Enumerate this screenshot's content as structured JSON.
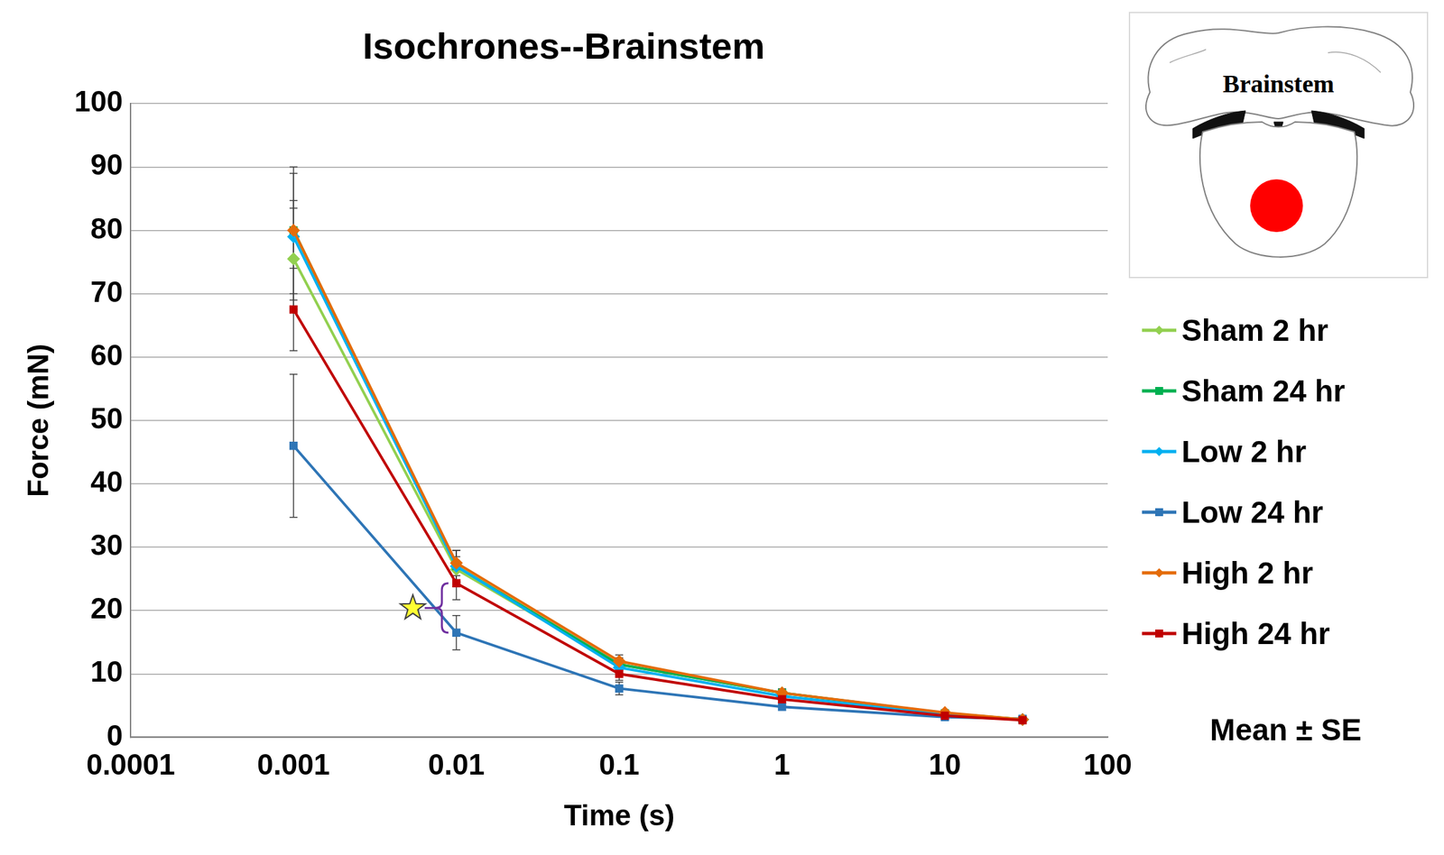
{
  "chart_data": {
    "type": "line",
    "title": "Isochrones--Brainstem",
    "x_label": "Time (s)",
    "y_label": "Force (mN)",
    "x": [
      0.001,
      0.01,
      0.1,
      1,
      10,
      30
    ],
    "series": [
      {
        "name": "Sham 2 hr",
        "color": "#92d050",
        "marker": "diamond",
        "values": [
          75.5,
          26.5,
          11.5,
          7,
          3.8,
          2.8
        ],
        "errors": [
          8,
          2,
          1,
          0.6,
          0.3,
          0.2
        ]
      },
      {
        "name": "Sham 24 hr",
        "color": "#00b050",
        "marker": "square",
        "values": [
          80,
          27,
          11.5,
          7,
          3.8,
          2.8
        ],
        "errors": [
          4.7,
          2.5,
          1,
          0.6,
          0.3,
          0.2
        ]
      },
      {
        "name": "Low 2 hr",
        "color": "#00b0f0",
        "marker": "diamond",
        "values": [
          79,
          27,
          11,
          6.5,
          3.6,
          2.8
        ],
        "errors": [
          10,
          2.5,
          1,
          0.6,
          0.3,
          0.2
        ]
      },
      {
        "name": "Low 24 hr",
        "color": "#2e75b6",
        "marker": "square",
        "values": [
          46,
          16.5,
          7.7,
          4.8,
          3.2,
          2.9
        ],
        "errors": [
          11.3,
          2.7,
          1,
          0.5,
          0.3,
          0.2
        ]
      },
      {
        "name": "High 2 hr",
        "color": "#e46c0a",
        "marker": "diamond",
        "values": [
          80,
          27.5,
          12,
          7,
          3.9,
          2.8
        ],
        "errors": [
          10,
          2,
          1,
          0.6,
          0.3,
          0.2
        ]
      },
      {
        "name": "High 24 hr",
        "color": "#c00000",
        "marker": "square",
        "values": [
          67.5,
          24.3,
          10,
          6,
          3.4,
          2.7
        ],
        "errors": [
          6.5,
          2.6,
          1,
          0.5,
          0.3,
          0.2
        ]
      }
    ],
    "log": "x",
    "xlim": [
      0.0001,
      100
    ],
    "xticks": [
      0.0001,
      0.001,
      0.01,
      0.1,
      1,
      10,
      100
    ],
    "ylim": [
      0,
      100
    ],
    "yticks": [
      0,
      10,
      20,
      30,
      40,
      50,
      60,
      70,
      80,
      90,
      100
    ],
    "grid": "y",
    "legend": "right",
    "annotations": [
      "Mean ± SE"
    ],
    "significance": {
      "x": 0.01,
      "series": [
        "Low 24 hr",
        "High 24 hr"
      ],
      "marker": "star"
    },
    "inset": {
      "label": "Brainstem"
    }
  }
}
